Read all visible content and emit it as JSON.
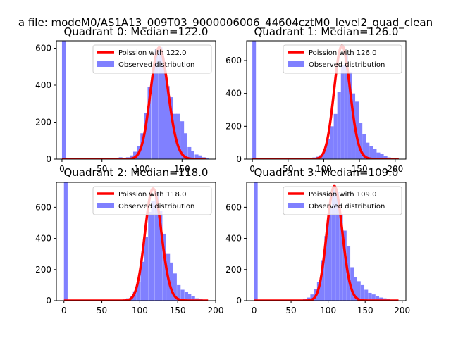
{
  "figure": {
    "suptitle": "a file: modeM0/AS1A13_009T03_9000006006_44604cztM0_level2_quad_clean"
  },
  "colors": {
    "hist": "#8080ff",
    "poisson": "#ff0000",
    "axis": "#000000"
  },
  "chart_data": [
    {
      "type": "bar",
      "title": "Quadrant 0: Median=122.0",
      "xlim": [
        -7,
        192
      ],
      "ylim": [
        0,
        640
      ],
      "xticks": [
        0,
        50,
        100,
        150
      ],
      "yticks": [
        0,
        200,
        400,
        600
      ],
      "legend": {
        "position": "top-right",
        "entries": [
          "Poission with 122.0",
          "Observed distribution"
        ]
      },
      "series": [
        {
          "name": "Observed distribution",
          "kind": "histogram",
          "bin_width": 4.5,
          "x": [
            0,
            49,
            71,
            76,
            80,
            85,
            89,
            94,
            98,
            103,
            107,
            112,
            116,
            121,
            125,
            130,
            134,
            139,
            143,
            148,
            152,
            157,
            161,
            166,
            170,
            175,
            179
          ],
          "y": [
            640,
            2,
            10,
            5,
            10,
            20,
            40,
            70,
            140,
            250,
            390,
            500,
            595,
            605,
            505,
            395,
            335,
            245,
            245,
            205,
            140,
            65,
            45,
            25,
            20,
            10,
            5
          ]
        },
        {
          "name": "Poission with 122.0",
          "kind": "line",
          "mean": 122.0,
          "scale": 603.0,
          "x_range": [
            0,
            180
          ]
        }
      ]
    },
    {
      "type": "bar",
      "title": "Quadrant 1: Median=126.0",
      "xlim": [
        -8,
        215
      ],
      "ylim": [
        0,
        720
      ],
      "xticks": [
        0,
        50,
        100,
        150,
        200
      ],
      "yticks": [
        0,
        200,
        400,
        600
      ],
      "legend": {
        "position": "top-right",
        "entries": [
          "Poission with 126.0",
          "Observed distribution"
        ]
      },
      "series": [
        {
          "name": "Observed distribution",
          "kind": "histogram",
          "bin_width": 5.0,
          "x": [
            0,
            79,
            84,
            89,
            94,
            99,
            104,
            109,
            114,
            119,
            124,
            129,
            134,
            139,
            144,
            149,
            154,
            159,
            164,
            169,
            174,
            179,
            184,
            189,
            194,
            199
          ],
          "y": [
            720,
            5,
            10,
            15,
            25,
            60,
            120,
            200,
            275,
            410,
            570,
            640,
            530,
            400,
            350,
            220,
            150,
            100,
            80,
            60,
            40,
            30,
            20,
            10,
            5,
            3
          ]
        },
        {
          "name": "Poission with 126.0",
          "kind": "line",
          "mean": 126.0,
          "scale": 690.0,
          "x_range": [
            0,
            205
          ]
        }
      ]
    },
    {
      "type": "bar",
      "title": "Quadrant 2: Median=118.0",
      "xlim": [
        -10,
        200
      ],
      "ylim": [
        0,
        760
      ],
      "xticks": [
        0,
        50,
        100,
        150,
        200
      ],
      "yticks": [
        0,
        200,
        400,
        600
      ],
      "legend": {
        "position": "top-right",
        "entries": [
          "Poission with 118.0",
          "Observed distribution"
        ]
      },
      "series": [
        {
          "name": "Observed distribution",
          "kind": "histogram",
          "bin_width": 4.8,
          "x": [
            0,
            77,
            82,
            87,
            91,
            96,
            101,
            106,
            111,
            115,
            120,
            125,
            130,
            135,
            139,
            144,
            149,
            154,
            159,
            163,
            168,
            173,
            178,
            183
          ],
          "y": [
            760,
            5,
            15,
            30,
            60,
            120,
            250,
            410,
            570,
            640,
            700,
            575,
            430,
            300,
            245,
            175,
            100,
            70,
            55,
            45,
            30,
            15,
            10,
            5
          ]
        },
        {
          "name": "Poission with 118.0",
          "kind": "line",
          "mean": 118.0,
          "scale": 720.0,
          "x_range": [
            0,
            190
          ]
        }
      ]
    },
    {
      "type": "bar",
      "title": "Quadrant 3: Median=109.0",
      "xlim": [
        -10,
        205
      ],
      "ylim": [
        0,
        760
      ],
      "xticks": [
        0,
        50,
        100,
        150,
        200
      ],
      "yticks": [
        0,
        200,
        400,
        600
      ],
      "legend": {
        "position": "top-right",
        "entries": [
          "Poission with 109.0",
          "Observed distribution"
        ]
      },
      "series": [
        {
          "name": "Observed distribution",
          "kind": "histogram",
          "bin_width": 4.9,
          "x": [
            0,
            61,
            66,
            71,
            76,
            81,
            85,
            90,
            95,
            100,
            105,
            110,
            115,
            120,
            125,
            130,
            134,
            139,
            144,
            149,
            154,
            159,
            164,
            169,
            174,
            179,
            183,
            188
          ],
          "y": [
            760,
            5,
            10,
            20,
            40,
            75,
            120,
            260,
            415,
            600,
            730,
            700,
            555,
            450,
            350,
            215,
            150,
            125,
            100,
            70,
            50,
            40,
            30,
            20,
            15,
            10,
            5,
            3
          ]
        },
        {
          "name": "Poission with 109.0",
          "kind": "line",
          "mean": 109.0,
          "scale": 735.0,
          "x_range": [
            0,
            195
          ]
        }
      ]
    }
  ]
}
